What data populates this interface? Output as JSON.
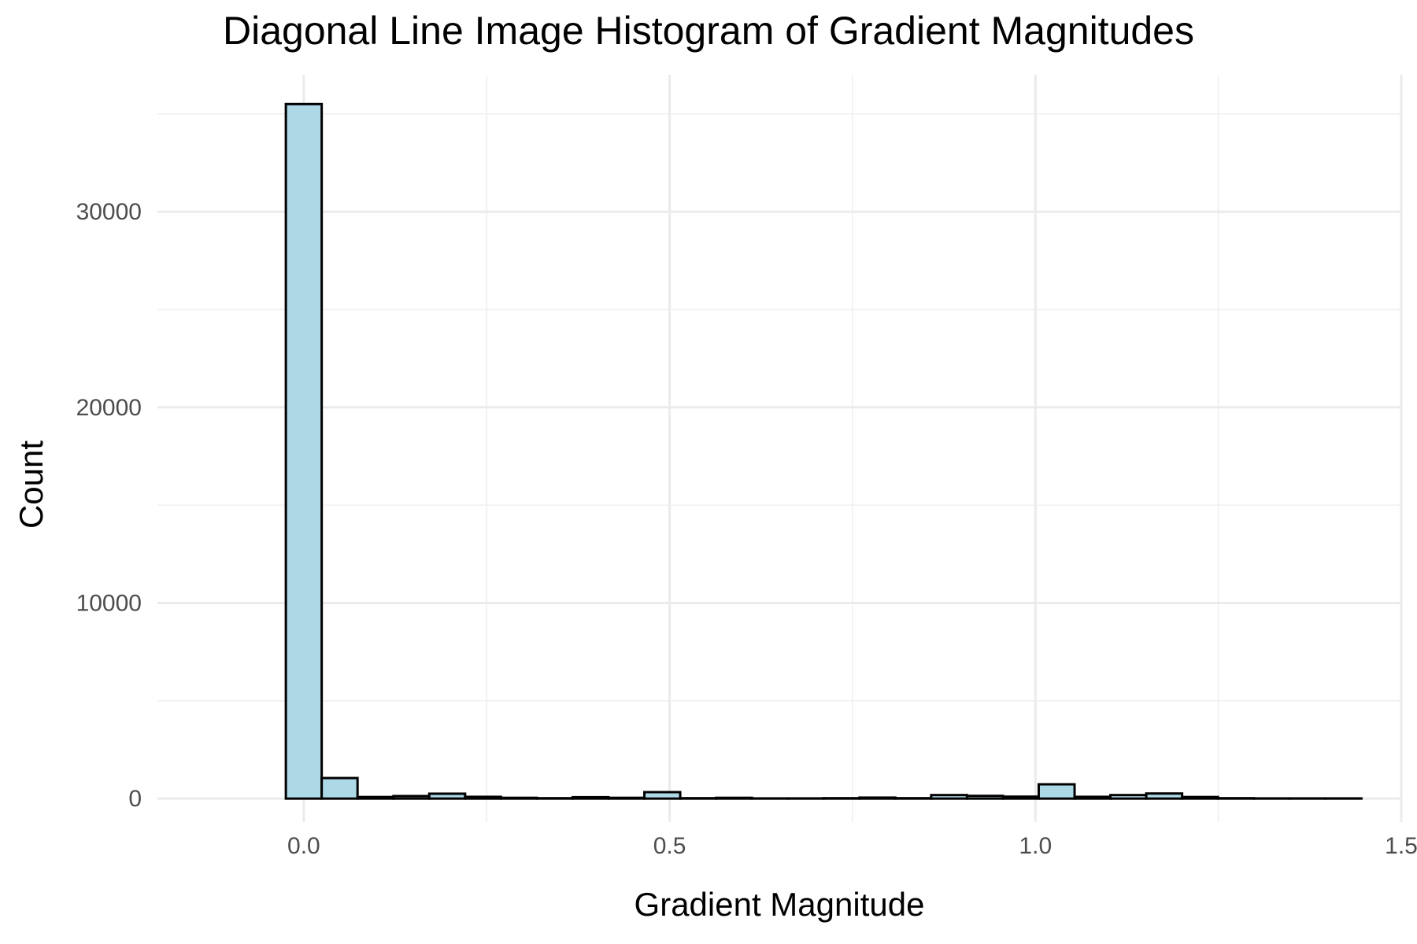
{
  "chart_data": {
    "type": "bar",
    "subtype": "histogram",
    "title": "Diagonal Line Image Histogram of Gradient Magnitudes",
    "xlabel": "Gradient Magnitude",
    "ylabel": "Count",
    "xlim": [
      -0.2,
      1.5
    ],
    "ylim": [
      -1200,
      37000
    ],
    "x_ticks": [
      0.0,
      0.5,
      1.0,
      1.5
    ],
    "x_tick_labels": [
      "0.0",
      "0.5",
      "1.0",
      "1.5"
    ],
    "y_ticks": [
      0,
      10000,
      20000,
      30000
    ],
    "y_tick_labels": [
      "0",
      "10000",
      "20000",
      "30000"
    ],
    "grid": true,
    "bar_fill": "#add8e6",
    "bar_outline": "#000000",
    "bin_width": 0.049,
    "bin_centers": [
      0.0,
      0.049,
      0.098,
      0.147,
      0.196,
      0.245,
      0.294,
      0.343,
      0.392,
      0.441,
      0.49,
      0.539,
      0.588,
      0.637,
      0.686,
      0.735,
      0.784,
      0.833,
      0.882,
      0.931,
      0.98,
      1.029,
      1.078,
      1.127,
      1.176,
      1.225,
      1.274,
      1.323,
      1.372,
      1.421
    ],
    "values": [
      35500,
      1050,
      80,
      130,
      250,
      90,
      40,
      20,
      70,
      40,
      330,
      20,
      40,
      10,
      10,
      20,
      50,
      20,
      180,
      140,
      100,
      730,
      90,
      180,
      260,
      80,
      20,
      10,
      10,
      10
    ]
  }
}
